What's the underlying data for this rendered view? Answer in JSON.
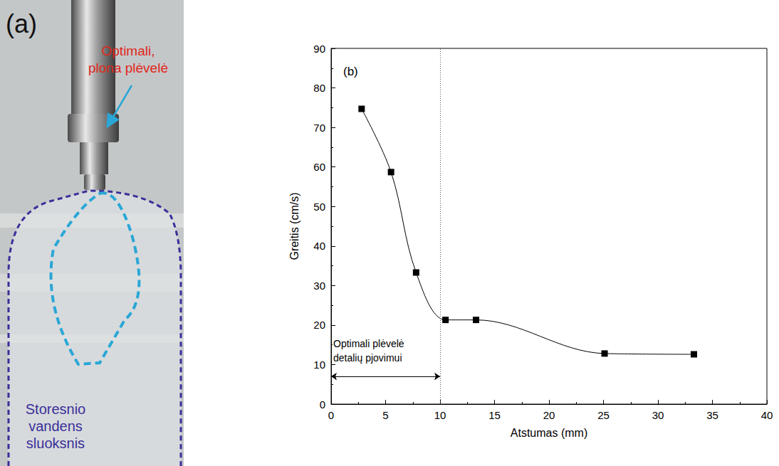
{
  "panel_a": {
    "letter": "(a)",
    "film_label": [
      "Optimali,",
      "plona plėvelė"
    ],
    "layer_label": [
      "Storesnio",
      "vandens",
      "sluoksnis"
    ]
  },
  "chart_data": {
    "type": "line",
    "panel_label": "(b)",
    "xlabel": "Atstumas (mm)",
    "ylabel": "Greitis (cm/s)",
    "x": [
      2.8,
      5.5,
      7.8,
      10.5,
      13.3,
      25.1,
      33.3
    ],
    "values": [
      74.7,
      58.7,
      33.3,
      21.3,
      21.3,
      12.8,
      12.6
    ],
    "color": "#000000",
    "marker": "square",
    "line_style": "solid",
    "grid": false,
    "xlim": [
      0,
      40
    ],
    "ylim": [
      0,
      90
    ],
    "xticks": [
      0,
      5,
      10,
      15,
      20,
      25,
      30,
      35,
      40
    ],
    "yticks": [
      0,
      10,
      20,
      30,
      40,
      50,
      60,
      70,
      80,
      90
    ],
    "annotations": [
      {
        "type": "vline",
        "x": 10,
        "line_style": "dotted"
      },
      {
        "type": "span",
        "x": [
          0,
          10
        ],
        "y": 7,
        "text": [
          "Optimali plėvelė",
          "detalių pjovimui"
        ]
      }
    ]
  }
}
